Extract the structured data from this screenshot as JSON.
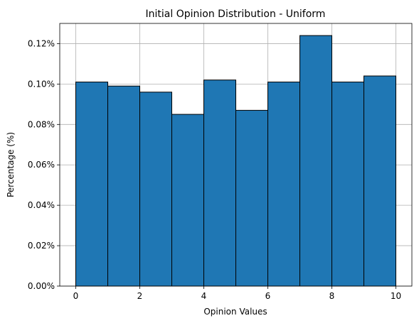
{
  "chart_data": {
    "type": "bar",
    "title": "Initial Opinion Distribution - Uniform",
    "xlabel": "Opinion Values",
    "ylabel": "Percentage (%)",
    "bin_edges": [
      0,
      1,
      2,
      3,
      4,
      5,
      6,
      7,
      8,
      9,
      10
    ],
    "values": [
      0.101,
      0.099,
      0.096,
      0.085,
      0.102,
      0.087,
      0.101,
      0.124,
      0.101,
      0.104
    ],
    "xlim": [
      -0.5,
      10.5
    ],
    "ylim": [
      0,
      0.13
    ],
    "x_ticks": [
      0,
      2,
      4,
      6,
      8,
      10
    ],
    "x_tick_labels": [
      "0",
      "2",
      "4",
      "6",
      "8",
      "10"
    ],
    "y_ticks": [
      0,
      0.02,
      0.04,
      0.06,
      0.08,
      0.1,
      0.12
    ],
    "y_tick_labels": [
      "0.00%",
      "0.02%",
      "0.04%",
      "0.06%",
      "0.08%",
      "0.10%",
      "0.12%"
    ],
    "grid": true,
    "bar_color": "#1f77b4",
    "edge_color": "#000000"
  }
}
